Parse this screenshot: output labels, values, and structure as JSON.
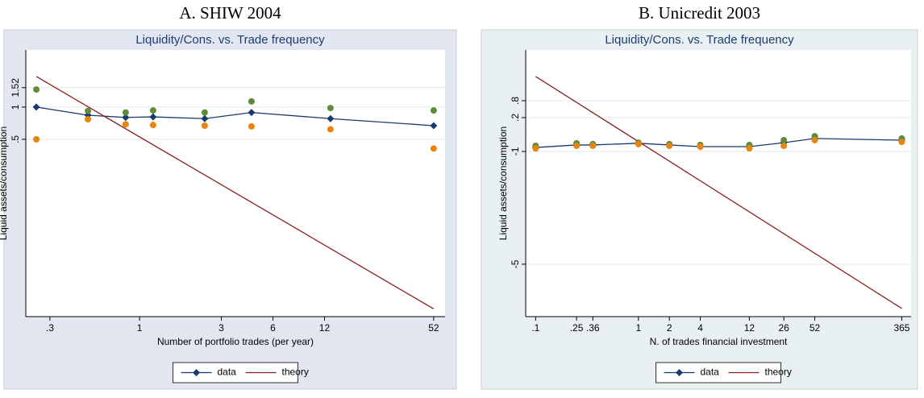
{
  "chart_data": [
    {
      "type": "line",
      "heading": "A. SHIW 2004",
      "title": "Liquidity/Cons. vs. Trade frequency",
      "xlabel": "Number of portfolio trades (per year)",
      "ylabel": "Liquid assets/consumption",
      "xscale": "log",
      "yscale": "log",
      "grid": true,
      "legend": "bottom",
      "background": "#e1e6f1",
      "xlim": [
        0.217,
        60.6
      ],
      "ylim": [
        0.011,
        3.42
      ],
      "xticks": [
        {
          "value": 0.3,
          "label": ".3"
        },
        1,
        3,
        6,
        12,
        52
      ],
      "yticks": [
        {
          "value": 0.5,
          "label": ".5"
        },
        1,
        1.52
      ],
      "series": [
        {
          "name": "data",
          "color": "#1a3a6e",
          "marker": "diamond",
          "line": true,
          "x": [
            0.25,
            0.5,
            0.83,
            1.2,
            2.4,
            4.5,
            13,
            52
          ],
          "values": [
            1.0,
            0.84,
            0.8,
            0.81,
            0.78,
            0.89,
            0.78,
            0.67
          ]
        },
        {
          "name": "theory",
          "color": "#8b2020",
          "marker": "none",
          "line": true,
          "x": [
            0.25,
            52
          ],
          "values": [
            1.93,
            0.013
          ]
        },
        {
          "color": "#5d8c3a",
          "marker": "circle",
          "line": false,
          "x": [
            0.25,
            0.5,
            0.83,
            1.2,
            2.4,
            4.5,
            13,
            52
          ],
          "values": [
            1.46,
            0.92,
            0.89,
            0.93,
            0.89,
            1.13,
            0.98,
            0.93
          ]
        },
        {
          "color": "#e8850f",
          "marker": "circle",
          "line": false,
          "x": [
            0.25,
            0.5,
            0.83,
            1.2,
            2.4,
            4.5,
            13,
            52
          ],
          "values": [
            0.5,
            0.77,
            0.69,
            0.68,
            0.67,
            0.66,
            0.62,
            0.41
          ]
        }
      ]
    },
    {
      "type": "line",
      "heading": "B. Unicredit 2003",
      "title": "Liquidity/Cons. vs. Trade  frequency",
      "xlabel": "N. of trades financial investment",
      "ylabel": "Liquid assets/consumption",
      "xscale": "log",
      "yscale": "linear",
      "grid": true,
      "legend": "bottom",
      "background": "#e8f0f1",
      "xlim": [
        0.08,
        450
      ],
      "ylim": [
        -6.86,
        2.6
      ],
      "xticks": [
        {
          "value": 0.1,
          "label": ".1"
        },
        {
          "value": 0.25,
          "label": ".25"
        },
        {
          "value": 0.36,
          "label": ".36"
        },
        1,
        2,
        4,
        12,
        26,
        52,
        365
      ],
      "yticks": [
        -5,
        -1,
        {
          "value": 0.2,
          "label": ".2"
        },
        {
          "value": 0.8,
          "label": ".8"
        }
      ],
      "series": [
        {
          "name": "data",
          "color": "#1a3a6e",
          "marker": "diamond",
          "line": true,
          "x": [
            0.1,
            0.25,
            0.36,
            1,
            2,
            4,
            12,
            26,
            52,
            365
          ],
          "values": [
            -0.86,
            -0.77,
            -0.77,
            -0.71,
            -0.77,
            -0.83,
            -0.83,
            -0.69,
            -0.54,
            -0.6
          ]
        },
        {
          "name": "theory",
          "color": "#8b2020",
          "marker": "none",
          "line": true,
          "x": [
            0.1,
            365
          ],
          "values": [
            1.66,
            -6.57
          ]
        },
        {
          "color": "#5d8c3a",
          "marker": "circle",
          "line": false,
          "x": [
            0.1,
            0.25,
            0.36,
            1,
            2,
            4,
            12,
            26,
            52,
            365
          ],
          "values": [
            -0.8,
            -0.71,
            -0.74,
            -0.69,
            -0.74,
            -0.77,
            -0.77,
            -0.6,
            -0.46,
            -0.54
          ]
        },
        {
          "color": "#e8850f",
          "marker": "circle",
          "line": false,
          "x": [
            0.1,
            0.25,
            0.36,
            1,
            2,
            4,
            12,
            26,
            52,
            365
          ],
          "values": [
            -0.89,
            -0.8,
            -0.8,
            -0.74,
            -0.8,
            -0.83,
            -0.89,
            -0.8,
            -0.6,
            -0.66
          ]
        }
      ]
    }
  ]
}
